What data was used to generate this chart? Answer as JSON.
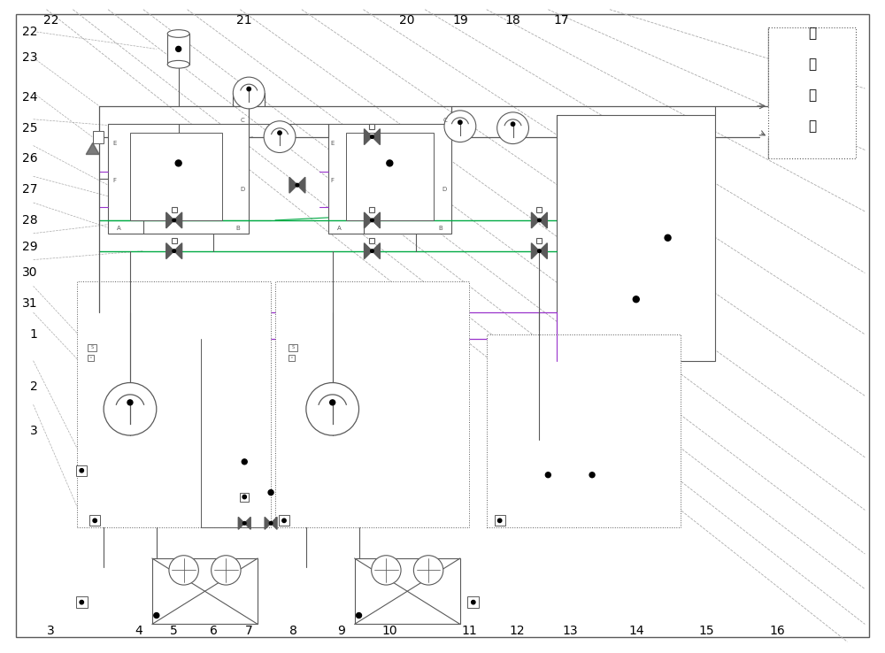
{
  "bg_color": "#ffffff",
  "line_color": "#5a5a5a",
  "green_color": "#00aa44",
  "purple_color": "#9933cc",
  "dashed_color": "#aaaaaa",
  "figsize": [
    10.0,
    7.38
  ],
  "dpi": 100,
  "ac_text": [
    "空",
    "调",
    "末",
    "端"
  ]
}
